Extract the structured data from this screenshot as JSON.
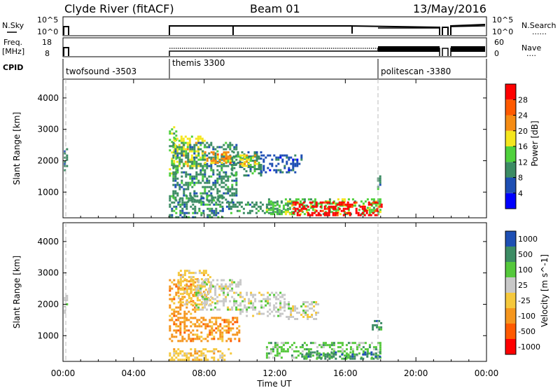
{
  "header": {
    "station": "Clyde River (fitACF)",
    "beam": "Beam 01",
    "date": "13/May/2016"
  },
  "left_labels": {
    "nsky": "N.Sky",
    "nsky_ticks": [
      "10^5",
      "10^0"
    ],
    "freq_line1": "Freq.",
    "freq_line2": "[MHz]",
    "freq_ticks": [
      "18",
      "8"
    ],
    "cpid": "CPID"
  },
  "right_labels": {
    "nsearch": "N.Search",
    "nsearch_ticks": [
      "10^5",
      "10^0"
    ],
    "nave": "Nave",
    "nave_ticks": [
      "60",
      "0"
    ],
    "dots": "......",
    "dots_short": "...."
  },
  "cpid_segments": [
    {
      "label": "twofsound -3503",
      "start_hour": 0.0
    },
    {
      "label": "themis 3300",
      "start_hour": 6.0
    },
    {
      "label": "politescan -3380",
      "start_hour": 18.0
    }
  ],
  "x_axis": {
    "label": "Time UT",
    "tick_labels": [
      "00:00",
      "04:00",
      "08:00",
      "12:00",
      "16:00",
      "20:00",
      "00:00"
    ],
    "tick_hours": [
      0,
      4,
      8,
      12,
      16,
      20,
      24
    ],
    "range_hours": [
      0,
      24
    ]
  },
  "y_axis": {
    "label": "Slant Range [km]",
    "tick_labels": [
      "1000",
      "2000",
      "3000",
      "4000"
    ],
    "tick_values": [
      1000,
      2000,
      3000,
      4000
    ],
    "range_km": [
      180,
      4600
    ]
  },
  "chart_data": [
    {
      "type": "heatmap",
      "panel": "power",
      "parameter": "Power",
      "colorbar_label": "Power [dB]",
      "colorbar_ticks": [
        "4",
        "8",
        "12",
        "16",
        "20",
        "24",
        "28"
      ],
      "colorbar_tick_values": [
        4,
        8,
        12,
        16,
        20,
        24,
        28
      ],
      "colorbar_range": [
        0,
        32
      ],
      "colors": [
        "#0000ff",
        "#1e4fb4",
        "#3c8c64",
        "#4fd13c",
        "#f5e61e",
        "#f58c14",
        "#ff5a00",
        "#ff0000"
      ],
      "regions": [
        {
          "t": [
            0.05,
            0.2
          ],
          "r": [
            1700,
            2400
          ],
          "level": 2
        },
        {
          "t": [
            6.0,
            6.4
          ],
          "r": [
            1500,
            3100
          ],
          "level": 3
        },
        {
          "t": [
            6.3,
            8.0
          ],
          "r": [
            1800,
            2800
          ],
          "level": 4
        },
        {
          "t": [
            6.2,
            9.8
          ],
          "r": [
            700,
            2600
          ],
          "level": 2
        },
        {
          "t": [
            8.0,
            9.5
          ],
          "r": [
            1900,
            2300
          ],
          "level": 5
        },
        {
          "t": [
            9.5,
            11.2
          ],
          "r": [
            1500,
            2300
          ],
          "level": 2
        },
        {
          "t": [
            10.0,
            11.0
          ],
          "r": [
            1800,
            2200
          ],
          "level": 4
        },
        {
          "t": [
            11.2,
            13.5
          ],
          "r": [
            1600,
            2200
          ],
          "level": 1
        },
        {
          "t": [
            6.0,
            9.0
          ],
          "r": [
            200,
            900
          ],
          "level": 2
        },
        {
          "t": [
            9.0,
            13.0
          ],
          "r": [
            300,
            700
          ],
          "level": 2
        },
        {
          "t": [
            11.5,
            18.0
          ],
          "r": [
            300,
            800
          ],
          "level": 3
        },
        {
          "t": [
            13.0,
            18.0
          ],
          "r": [
            250,
            700
          ],
          "level": 7
        },
        {
          "t": [
            17.8,
            18.0
          ],
          "r": [
            1000,
            1600
          ],
          "level": 2
        }
      ]
    },
    {
      "type": "heatmap",
      "panel": "velocity",
      "parameter": "Velocity",
      "colorbar_label": "Velocity [m s^-1]",
      "colorbar_ticks": [
        "1000",
        "500",
        "100",
        "25",
        "-25",
        "-100",
        "-500",
        "-1000"
      ],
      "colorbar_tick_values": [
        1000,
        500,
        100,
        25,
        -25,
        -100,
        -500,
        -1000
      ],
      "colorbar_range": [
        -1000,
        1000
      ],
      "colors": [
        "#ff0000",
        "#ff5a00",
        "#f5961e",
        "#f5c83c",
        "#c8c8c8",
        "#55c83c",
        "#3c8c64",
        "#1e4fb4"
      ],
      "regions": [
        {
          "t": [
            0.05,
            0.2
          ],
          "r": [
            1700,
            2300
          ],
          "level": 4
        },
        {
          "t": [
            6.0,
            7.5
          ],
          "r": [
            1500,
            2800
          ],
          "level": 2
        },
        {
          "t": [
            6.5,
            8.5
          ],
          "r": [
            2000,
            3100
          ],
          "level": 3
        },
        {
          "t": [
            7.5,
            10.0
          ],
          "r": [
            1800,
            2800
          ],
          "level": 4
        },
        {
          "t": [
            10.0,
            12.5
          ],
          "r": [
            1600,
            2400
          ],
          "level": 4
        },
        {
          "t": [
            12.5,
            14.5
          ],
          "r": [
            1500,
            2100
          ],
          "level": 4
        },
        {
          "t": [
            6.0,
            10.0
          ],
          "r": [
            800,
            1600
          ],
          "level": 2
        },
        {
          "t": [
            6.0,
            9.5
          ],
          "r": [
            200,
            600
          ],
          "level": 3
        },
        {
          "t": [
            11.5,
            18.0
          ],
          "r": [
            300,
            800
          ],
          "level": 5
        },
        {
          "t": [
            13.5,
            18.0
          ],
          "r": [
            250,
            500
          ],
          "level": 6
        },
        {
          "t": [
            17.5,
            18.0
          ],
          "r": [
            1100,
            1500
          ],
          "level": 6
        }
      ]
    }
  ]
}
